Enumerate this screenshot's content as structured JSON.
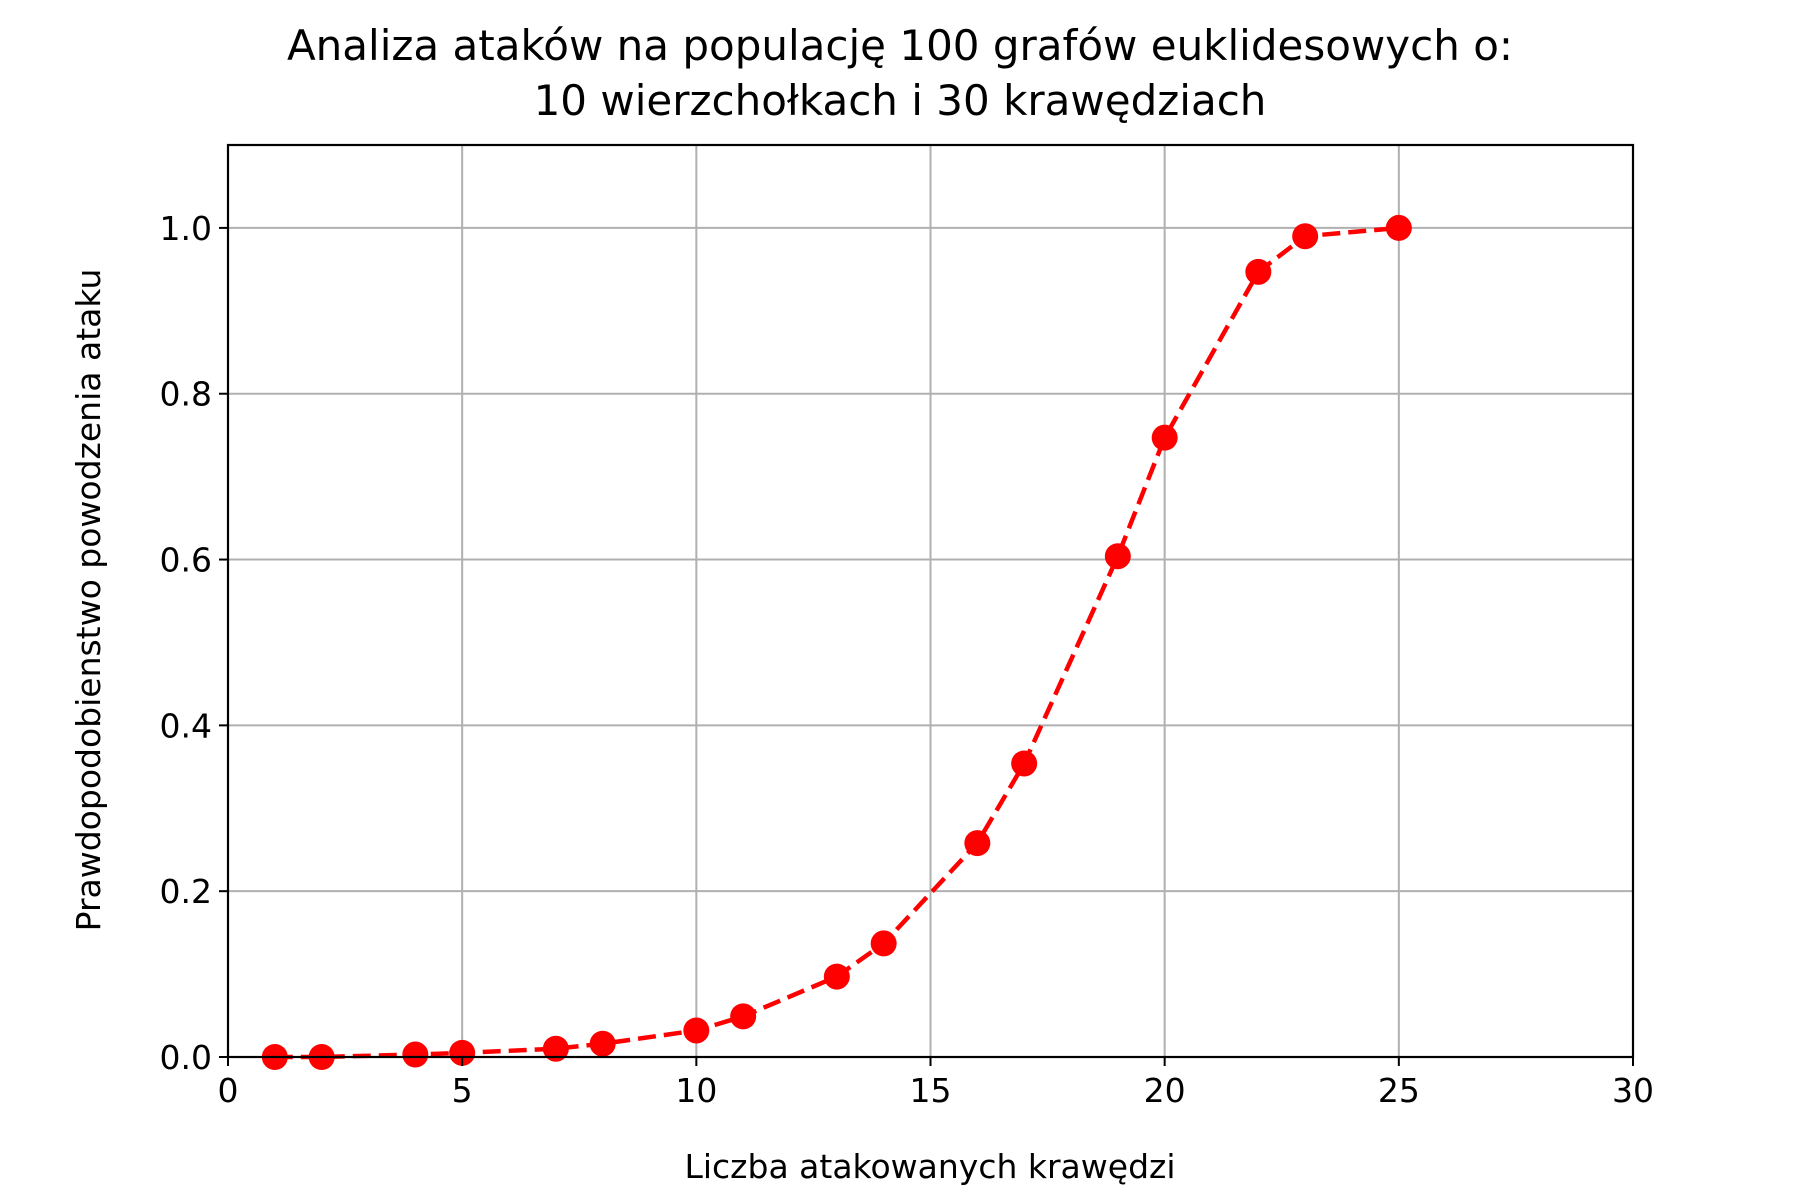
{
  "chart_data": {
    "type": "line",
    "title_lines": [
      "Analiza ataków na populację 100 grafów euklidesowych o:",
      "10 wierzchołkach i 30 krawędziach"
    ],
    "xlabel": "Liczba atakowanych krawędzi",
    "ylabel": "Prawdopodobienstwo powodzenia ataku",
    "xlim": [
      0,
      30
    ],
    "ylim": [
      0,
      1.1
    ],
    "x_ticks": [
      0,
      5,
      10,
      15,
      20,
      25,
      30
    ],
    "x_tick_labels": [
      "0",
      "5",
      "10",
      "15",
      "20",
      "25",
      "30"
    ],
    "y_ticks": [
      0,
      0.2,
      0.4,
      0.6,
      0.8,
      1.0
    ],
    "y_tick_labels": [
      "0.0",
      "0.2",
      "0.4",
      "0.6",
      "0.8",
      "1.0"
    ],
    "grid": true,
    "series": [
      {
        "color": "#ff0000",
        "line_style": "dashed",
        "marker": "circle",
        "x": [
          1,
          2,
          4,
          5,
          7,
          8,
          10,
          11,
          13,
          14,
          16,
          17,
          19,
          20,
          22,
          23,
          25
        ],
        "y": [
          0.0,
          0.0,
          0.003,
          0.005,
          0.01,
          0.016,
          0.032,
          0.049,
          0.097,
          0.137,
          0.258,
          0.354,
          0.604,
          0.747,
          0.947,
          0.99,
          1.0
        ]
      }
    ]
  }
}
